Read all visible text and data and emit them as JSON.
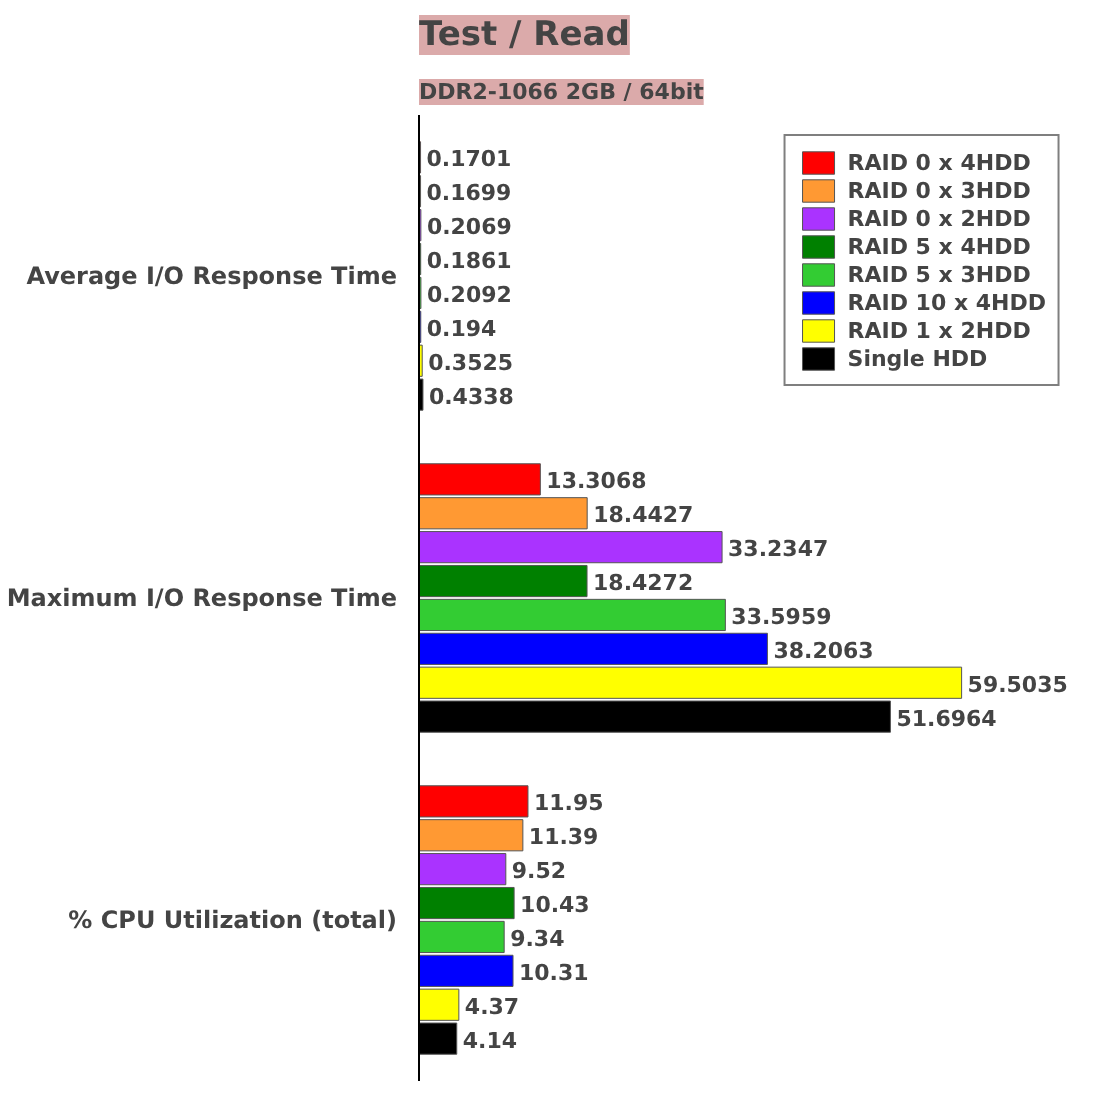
{
  "chart_data": {
    "type": "bar",
    "orientation": "horizontal",
    "title": "Test / Read",
    "subtitle": "DDR2-1066 2GB / 64bit",
    "categories": [
      "Average I/O Response Time",
      "Maximum I/O Response Time",
      "% CPU Utilization (total)"
    ],
    "series": [
      {
        "name": "RAID 0 x 4HDD",
        "color": "#ff0000",
        "values": [
          0.1701,
          13.3068,
          11.95
        ]
      },
      {
        "name": "RAID 0 x 3HDD",
        "color": "#ff9933",
        "values": [
          0.1699,
          18.4427,
          11.39
        ]
      },
      {
        "name": "RAID 0 x 2HDD",
        "color": "#aa33ff",
        "values": [
          0.2069,
          33.2347,
          9.52
        ]
      },
      {
        "name": "RAID 5 x 4HDD",
        "color": "#008000",
        "values": [
          0.1861,
          18.4272,
          10.43
        ]
      },
      {
        "name": "RAID 5 x 3HDD",
        "color": "#33cc33",
        "values": [
          0.2092,
          33.5959,
          9.34
        ]
      },
      {
        "name": "RAID 10 x 4HDD",
        "color": "#0000ff",
        "values": [
          0.194,
          38.2063,
          10.31
        ]
      },
      {
        "name": "RAID 1 x 2HDD",
        "color": "#ffff00",
        "values": [
          0.3525,
          59.5035,
          4.37
        ]
      },
      {
        "name": "Single HDD",
        "color": "#000000",
        "values": [
          0.4338,
          51.6964,
          4.14
        ]
      }
    ],
    "data_labels": true,
    "legend": "top right",
    "grid": false
  }
}
